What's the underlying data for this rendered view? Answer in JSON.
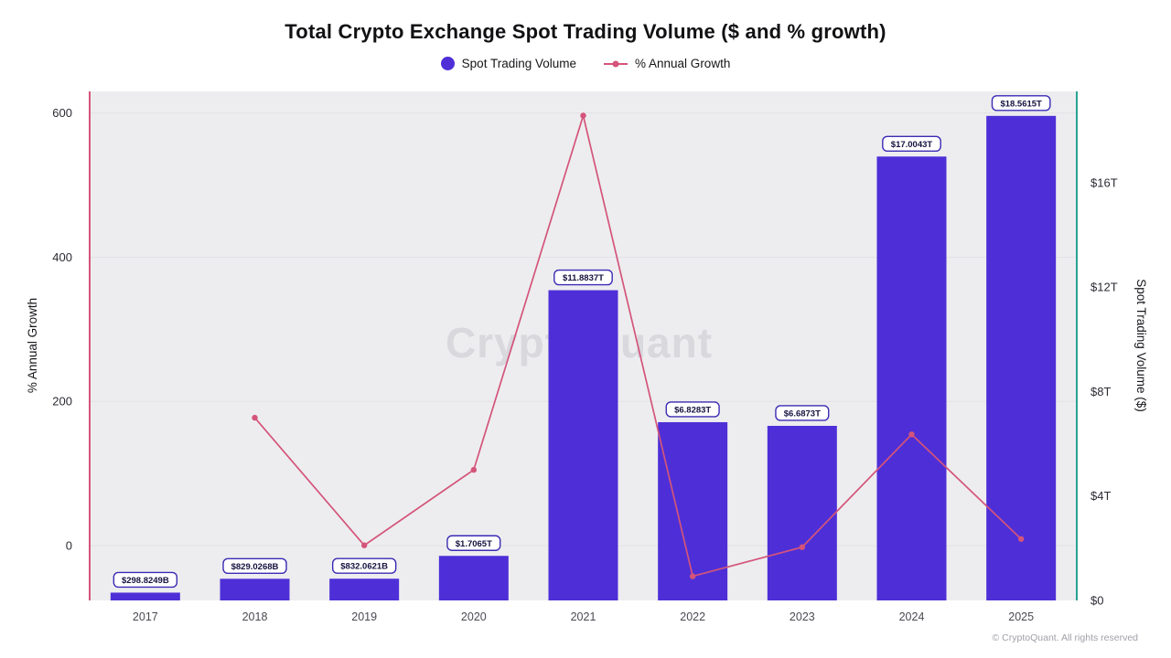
{
  "page": {
    "watermark": "CryptoQuant",
    "footer": "© CryptoQuant. All rights reserved"
  },
  "legend": {
    "items": [
      {
        "label": "Spot Trading Volume",
        "marker": "dot"
      },
      {
        "label": "% Annual Growth",
        "marker": "line-dot"
      }
    ]
  },
  "colors": {
    "bar": "#4e2fd7",
    "line": "#d4547a",
    "left_spine": "#d4547a",
    "right_spine": "#27a392",
    "plot_bg": "#ededef",
    "gridline": "#e3e3e7",
    "watermark": "#d8d8dd",
    "label_border": "#3b2bb4",
    "label_text": "#15123f"
  },
  "chart_data": {
    "type": "bar+line",
    "title": "Total Crypto Exchange Spot Trading Volume ($ and % growth)",
    "categories": [
      "2017",
      "2018",
      "2019",
      "2020",
      "2021",
      "2022",
      "2023",
      "2024",
      "2025"
    ],
    "series": [
      {
        "name": "Spot Trading Volume",
        "type": "bar",
        "axis": "right",
        "unit": "trillion USD",
        "values": [
          0.2988249,
          0.8290268,
          0.8320621,
          1.7065,
          11.8837,
          6.8283,
          6.6873,
          17.0043,
          18.5615
        ],
        "labels": [
          "$298.8249B",
          "$829.0268B",
          "$832.0621B",
          "$1.7065T",
          "$11.8837T",
          "$6.8283T",
          "$6.6873T",
          "$17.0043T",
          "$18.5615T"
        ]
      },
      {
        "name": "% Annual Growth",
        "type": "line",
        "axis": "left",
        "unit": "%",
        "values": [
          null,
          177.4,
          0.4,
          105.1,
          596.4,
          -42.5,
          -2.1,
          154.3,
          9.2
        ]
      }
    ],
    "left_axis": {
      "label": "% Annual Growth",
      "ticks": [
        0,
        200,
        400,
        600
      ],
      "min": -76,
      "max": 630
    },
    "right_axis": {
      "label": "Spot Trading Volume ($)",
      "ticks": [
        0,
        4,
        8,
        12,
        16
      ],
      "tick_labels": [
        "$0",
        "$4T",
        "$8T",
        "$12T",
        "$16T"
      ],
      "min": 0,
      "max": 19.5
    },
    "legend_position": "top",
    "grid": "subtle horizontal lines at left-axis ticks"
  }
}
